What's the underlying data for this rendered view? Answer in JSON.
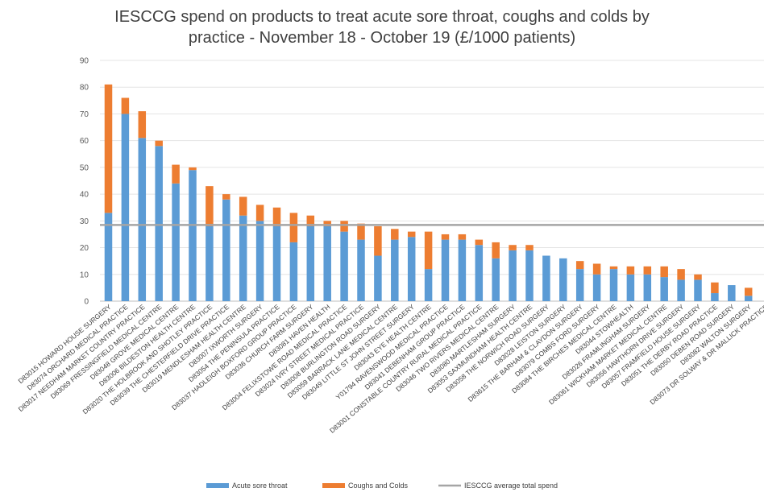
{
  "chart_data": {
    "type": "bar",
    "stacked": true,
    "title_line1": "IESCCG spend on products to treat acute sore throat, coughs and colds by",
    "title_line2": "practice - November 18 - October 19 (£/1000 patients)",
    "ylim": [
      0,
      90
    ],
    "yticks": [
      0,
      10,
      20,
      30,
      40,
      50,
      60,
      70,
      80,
      90
    ],
    "grid": true,
    "legend_position": "bottom",
    "average": 28.5,
    "colors": {
      "sore_throat": "#5b9bd5",
      "coughs": "#ed7d31",
      "average": "#a5a5a5"
    },
    "categories": [
      "D83015 HOWARD HOUSE SURGERY",
      "D83074 ORCHARD MEDICAL PRACTICE",
      "D83017 NEEDHAM MARKET COUNTRY PRACTICE",
      "D83069 FRESSINGFIELD MEDICAL CENTRE",
      "D83048 GROVE MEDICAL CENTRE",
      "D83006 BILDESTON HEALTH CENTRE",
      "D83020 THE HOLBROOK AND SHOTLEY PRACTICE",
      "D83039 THE CHESTERFIELD DRIVE PRACTICE",
      "D83019 MENDLESHAM HEALTH CENTRE",
      "D83007 IXWORTH SURGERY",
      "D83054 THE PENINSULA PRACTICE",
      "D83037 HADLEIGH BOXFORD GROUP PRACTICE",
      "D83036 CHURCH FARM SURGERY",
      "D83081 HAVEN HEALTH",
      "D83004 FELIXSTOWE ROAD MEDICAL PRACTICE",
      "D83024 IVRY STREET MEDICAL PRACTICE",
      "D83008 BURLINGTON ROAD SURGERY",
      "D83059 BARRACK LANE MEDICAL CENTRE",
      "D83049 LITTLE ST JOHN STREET SURGERY",
      "D83043 EYE HEALTH CENTRE",
      "Y01794 RAVENSWOOD MEDICAL PRACTICE",
      "D83041 DEBENHAM GROUP PRACTICE",
      "D83001 CONSTABLE COUNTRY RURAL MEDICAL PRACTICE",
      "D83046 TWO RIVERS MEDICAL CENTRE",
      "D83080 MARTLESHAM SURGERY",
      "D83053 SAXMUNDHAM HEALTH CENTRE",
      "D83058 THE NORWICH ROAD SURGERY",
      "D83028 LEISTON SURGERY",
      "D83615 THE BARHAM & CLAYDON SURGERY",
      "D83079 COMBS FORD SURGERY",
      "D83084 THE BIRCHES MEDICAL CENTRE",
      "D83044 STOWHEALTH",
      "D83026 FRAMLINGHAM SURGERY",
      "D83061 WICKHAM MARKET MEDICAL CENTRE",
      "D83056 HAWTHORN DRIVE SURGERY",
      "D83057 FRAMFIELD HOUSE SURGERY",
      "D83051 THE DERBY ROAD PRACTICE",
      "D83050 DEBEN ROAD SURGERY",
      "D83082 WALTON SURGERY",
      "D83073 DR SOLWAY & DR MALLICK PRACTICE"
    ],
    "series": [
      {
        "name": "Acute sore throat",
        "values": [
          33,
          70,
          61,
          58,
          44,
          49,
          28,
          38,
          32,
          30,
          28,
          22,
          28,
          28,
          26,
          23,
          17,
          23,
          24,
          12,
          23,
          23,
          21,
          16,
          19,
          19,
          17,
          16,
          12,
          10,
          12,
          10,
          10,
          9,
          8,
          8,
          3,
          6,
          2,
          0
        ]
      },
      {
        "name": "Coughs and Colds",
        "values": [
          48,
          6,
          10,
          2,
          7,
          1,
          15,
          2,
          7,
          6,
          7,
          11,
          4,
          2,
          4,
          6,
          11,
          4,
          2,
          14,
          2,
          2,
          2,
          6,
          2,
          2,
          0,
          0,
          3,
          4,
          1,
          3,
          3,
          4,
          4,
          2,
          4,
          0,
          3,
          0
        ]
      }
    ],
    "average_series_name": "IESCCG average total spend"
  }
}
